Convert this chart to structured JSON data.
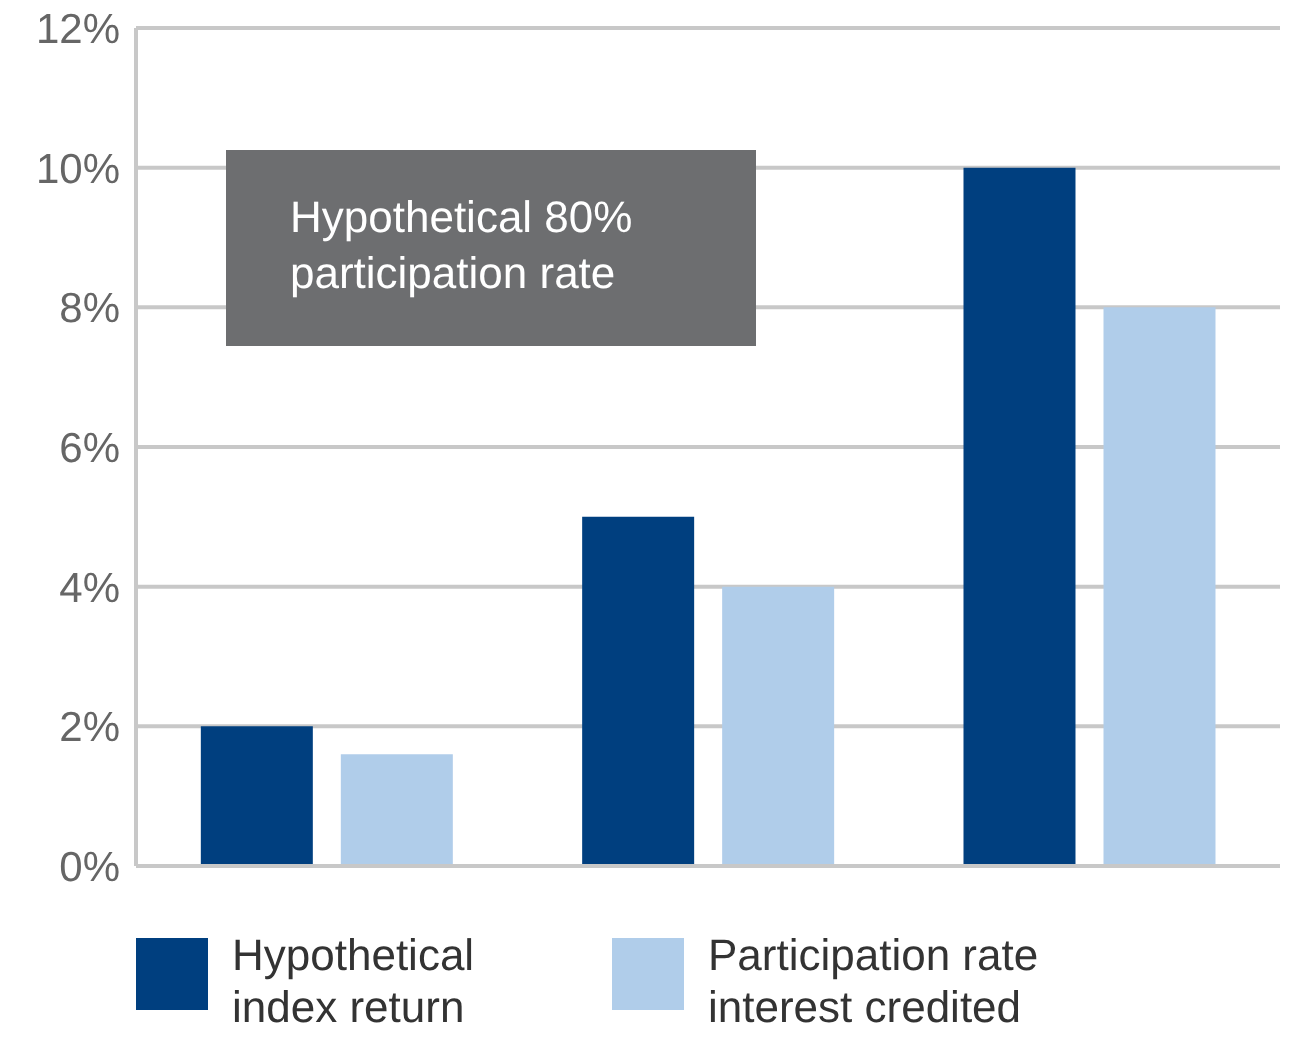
{
  "chart_data": {
    "type": "bar",
    "categories": [
      null,
      null,
      null
    ],
    "series": [
      {
        "name": "Hypothetical index return",
        "color": "#003f7f",
        "values": [
          2,
          5,
          10
        ]
      },
      {
        "name": "Participation rate interest credited",
        "color": "#b0cdea",
        "values": [
          1.6,
          4,
          8
        ]
      }
    ],
    "ylim": [
      0,
      12
    ],
    "yticks": [
      {
        "value": 0,
        "label": "0%"
      },
      {
        "value": 2,
        "label": "2%"
      },
      {
        "value": 4,
        "label": "4%"
      },
      {
        "value": 6,
        "label": "6%"
      },
      {
        "value": 8,
        "label": "8%"
      },
      {
        "value": 10,
        "label": "10%"
      },
      {
        "value": 12,
        "label": "12%"
      }
    ],
    "grid": "y",
    "legend": "bottom",
    "annotations": [
      "Hypothetical 80% participation rate"
    ]
  }
}
